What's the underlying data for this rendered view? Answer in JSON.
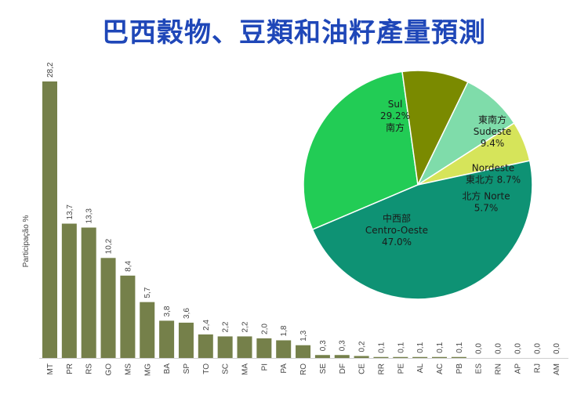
{
  "title": "巴西穀物、豆類和油籽產量預測",
  "chart_data": [
    {
      "type": "bar",
      "ylabel": "Participação %",
      "categories": [
        "MT",
        "PR",
        "RS",
        "GO",
        "MS",
        "MG",
        "BA",
        "SP",
        "TO",
        "SC",
        "MA",
        "PI",
        "PA",
        "RO",
        "SE",
        "DF",
        "CE",
        "RR",
        "PE",
        "AL",
        "AC",
        "PB",
        "ES",
        "RN",
        "AP",
        "RJ",
        "AM"
      ],
      "values": [
        28.2,
        13.7,
        13.3,
        10.2,
        8.4,
        5.7,
        3.8,
        3.6,
        2.4,
        2.2,
        2.2,
        2.0,
        1.8,
        1.3,
        0.3,
        0.3,
        0.2,
        0.1,
        0.1,
        0.1,
        0.1,
        0.1,
        0.0,
        0.0,
        0.0,
        0.0,
        0.0
      ],
      "value_labels": [
        "28,2",
        "13,7",
        "13,3",
        "10,2",
        "8,4",
        "5,7",
        "3,8",
        "3,6",
        "2,4",
        "2,2",
        "2,2",
        "2,0",
        "1,8",
        "1,3",
        "0,3",
        "0,3",
        "0,2",
        "0,1",
        "0,1",
        "0,1",
        "0,1",
        "0,1",
        "0,0",
        "0,0",
        "0,0",
        "0,0",
        "0,0"
      ],
      "bar_color": "#75804a"
    },
    {
      "type": "pie",
      "slices": [
        {
          "name": "Sul",
          "name_zh": "南方",
          "value": 29.2,
          "label": "29.2%",
          "color": "#22cc55"
        },
        {
          "name": "Sudeste",
          "name_zh": "東南方",
          "value": 9.4,
          "label": "9.4%",
          "color": "#7a8a00"
        },
        {
          "name": "Nordeste",
          "name_zh": "東北方",
          "value": 8.7,
          "label": "8.7%",
          "color": "#7fdcaa"
        },
        {
          "name": "Norte",
          "name_zh": "北方",
          "value": 5.7,
          "label": "5.7%",
          "color": "#d6e45a"
        },
        {
          "name": "Centro-Oeste",
          "name_zh": "中西部",
          "value": 47.0,
          "label": "47.0%",
          "color": "#0e9274"
        }
      ]
    }
  ]
}
